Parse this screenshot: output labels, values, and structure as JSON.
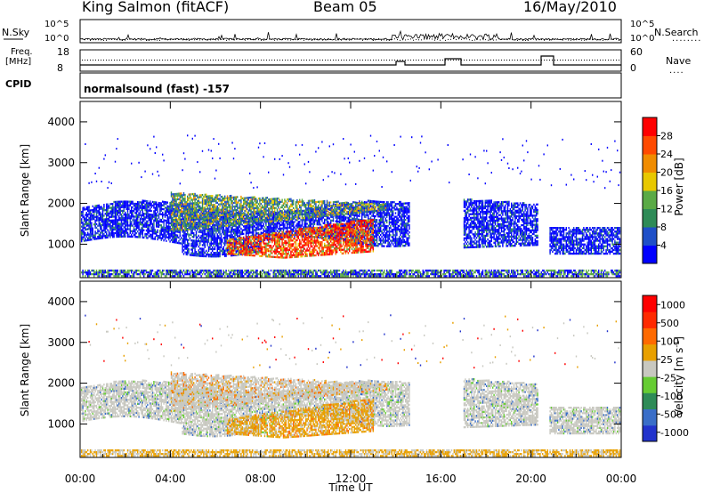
{
  "header": {
    "station": "King Salmon (fitACF)",
    "beam": "Beam 05",
    "date": "16/May/2010"
  },
  "noise_panel": {
    "left_label": "N.Sky",
    "right_label": "N.Search",
    "ticks": [
      "10^5",
      "10^0"
    ],
    "right_dots": "........"
  },
  "freq_panel": {
    "left_label": "Freq.",
    "left_unit": "[MHz]",
    "left_ticks": [
      "18",
      "8"
    ],
    "right_label": "Nave",
    "right_ticks": [
      "60",
      "0"
    ],
    "right_dots": "...."
  },
  "cpid": {
    "label": "CPID",
    "value": "normalsound (fast) -157"
  },
  "x_axis": {
    "label": "Time UT",
    "ticks": [
      "00:00",
      "04:00",
      "08:00",
      "12:00",
      "16:00",
      "20:00",
      "00:00"
    ]
  },
  "chart_data": [
    {
      "type": "heatmap",
      "name": "power",
      "xlabel": "Time UT",
      "ylabel": "Slant Range [km]",
      "xlim": [
        0,
        24
      ],
      "ylim": [
        180,
        4500
      ],
      "yticks": [
        1000,
        2000,
        3000,
        4000
      ],
      "colorbar": {
        "label": "Power [dB]",
        "ticks": [
          "4",
          "8",
          "12",
          "16",
          "20",
          "24",
          "28"
        ],
        "colors": [
          "#0000ff",
          "#1e4fc8",
          "#2e8b57",
          "#5aaa46",
          "#e8c800",
          "#f08c00",
          "#ff4a00",
          "#ff0000"
        ]
      }
    },
    {
      "type": "heatmap",
      "name": "velocity",
      "xlabel": "Time UT",
      "ylabel": "Slant Range [km]",
      "xlim": [
        0,
        24
      ],
      "ylim": [
        180,
        4500
      ],
      "yticks": [
        1000,
        2000,
        3000,
        4000
      ],
      "colorbar": {
        "label": "Velocity [m s^-1]",
        "ticks": [
          "1000",
          "500",
          "100",
          "25",
          "-25",
          "-100",
          "-500",
          "-1000"
        ],
        "colors": [
          "#2233cc",
          "#3a6ec8",
          "#2e8b57",
          "#66cc33",
          "#c8c8c0",
          "#e8a000",
          "#ff6a00",
          "#ff2a00",
          "#ff0000"
        ]
      }
    }
  ],
  "colors": {
    "ground": "#c8c8c0"
  }
}
